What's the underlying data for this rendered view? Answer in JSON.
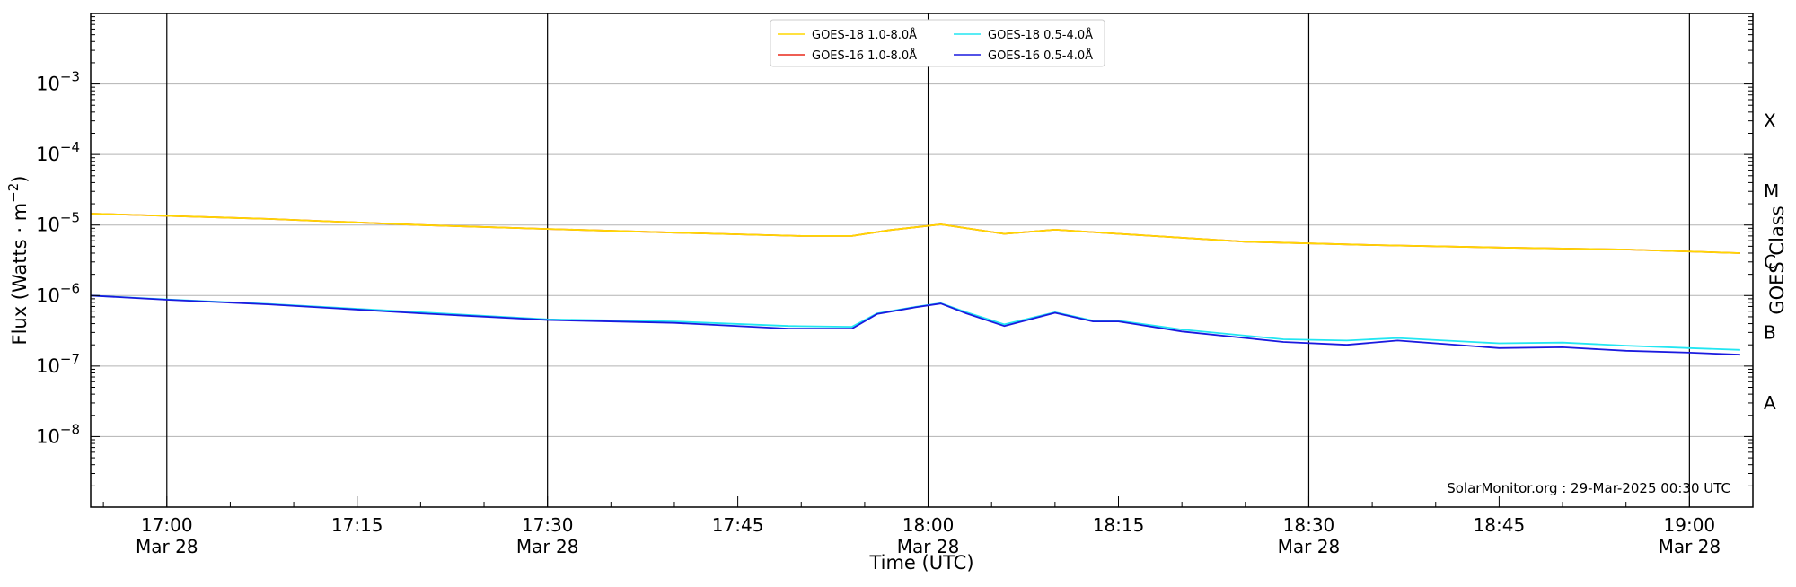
{
  "chart_data": {
    "type": "line",
    "xlabel": "Time (UTC)",
    "ylabel": "Flux (Watts · m⁻²)",
    "right_label": "GOES Class",
    "credit": "SolarMonitor.org : 29-Mar-2025 00:30 UTC",
    "x_range": [
      "2025-03-28 16:54",
      "2025-03-28 19:05"
    ],
    "y_scale": "log",
    "ylim": [
      1e-09,
      0.01
    ],
    "grid": "horizontal",
    "legend_position": "top-center",
    "x_ticks": [
      {
        "time": "2025-03-28 17:00",
        "label": "17:00",
        "date": "Mar 28",
        "major": true
      },
      {
        "time": "2025-03-28 17:15",
        "label": "17:15",
        "date": "",
        "major": false
      },
      {
        "time": "2025-03-28 17:30",
        "label": "17:30",
        "date": "Mar 28",
        "major": true
      },
      {
        "time": "2025-03-28 17:45",
        "label": "17:45",
        "date": "",
        "major": false
      },
      {
        "time": "2025-03-28 18:00",
        "label": "18:00",
        "date": "Mar 28",
        "major": true
      },
      {
        "time": "2025-03-28 18:15",
        "label": "18:15",
        "date": "",
        "major": false
      },
      {
        "time": "2025-03-28 18:30",
        "label": "18:30",
        "date": "Mar 28",
        "major": true
      },
      {
        "time": "2025-03-28 18:45",
        "label": "18:45",
        "date": "",
        "major": false
      },
      {
        "time": "2025-03-28 19:00",
        "label": "19:00",
        "date": "Mar 28",
        "major": true
      }
    ],
    "y_ticks": [
      {
        "value": 1e-08,
        "base": "10",
        "exp": "−8"
      },
      {
        "value": 1e-07,
        "base": "10",
        "exp": "−7"
      },
      {
        "value": 1e-06,
        "base": "10",
        "exp": "−6"
      },
      {
        "value": 1e-05,
        "base": "10",
        "exp": "−5"
      },
      {
        "value": 0.0001,
        "base": "10",
        "exp": "−4"
      },
      {
        "value": 0.001,
        "base": "10",
        "exp": "−3"
      }
    ],
    "goes_classes": [
      {
        "label": "A",
        "value": 3e-08
      },
      {
        "label": "B",
        "value": 3e-07
      },
      {
        "label": "C",
        "value": 3e-06
      },
      {
        "label": "M",
        "value": 3e-05
      },
      {
        "label": "X",
        "value": 0.0003
      }
    ],
    "series": [
      {
        "name": "GOES-18 1.0-8.0Å",
        "color": "#ffd700",
        "x": [
          "2025-03-28 16:54",
          "2025-03-28 17:00",
          "2025-03-28 17:08",
          "2025-03-28 17:20",
          "2025-03-28 17:30",
          "2025-03-28 17:40",
          "2025-03-28 17:50",
          "2025-03-28 17:54",
          "2025-03-28 17:57",
          "2025-03-28 18:01",
          "2025-03-28 18:06",
          "2025-03-28 18:10",
          "2025-03-28 18:15",
          "2025-03-28 18:25",
          "2025-03-28 18:35",
          "2025-03-28 18:45",
          "2025-03-28 18:55",
          "2025-03-28 19:04"
        ],
        "y": [
          1.45e-05,
          1.35e-05,
          1.22e-05,
          1e-05,
          8.8e-06,
          7.8e-06,
          7e-06,
          7e-06,
          8.5e-06,
          1.02e-05,
          7.5e-06,
          8.6e-06,
          7.5e-06,
          5.8e-06,
          5.2e-06,
          4.8e-06,
          4.5e-06,
          4e-06
        ]
      },
      {
        "name": "GOES-16 1.0-8.0Å",
        "color": "#e8291a",
        "x": [
          "2025-03-28 16:54",
          "2025-03-28 17:00",
          "2025-03-28 17:08",
          "2025-03-28 17:20",
          "2025-03-28 17:30",
          "2025-03-28 17:40",
          "2025-03-28 17:50",
          "2025-03-28 17:54",
          "2025-03-28 17:57",
          "2025-03-28 18:01",
          "2025-03-28 18:06",
          "2025-03-28 18:10",
          "2025-03-28 18:15",
          "2025-03-28 18:25",
          "2025-03-28 18:35",
          "2025-03-28 18:45",
          "2025-03-28 18:55",
          "2025-03-28 19:04"
        ],
        "y": [
          1.45e-05,
          1.35e-05,
          1.22e-05,
          1e-05,
          8.8e-06,
          7.8e-06,
          7e-06,
          7e-06,
          8.5e-06,
          1.02e-05,
          7.5e-06,
          8.6e-06,
          7.5e-06,
          5.8e-06,
          5.2e-06,
          4.8e-06,
          4.5e-06,
          4e-06
        ]
      },
      {
        "name": "GOES-18 0.5-4.0Å",
        "color": "#22e6f2",
        "x": [
          "2025-03-28 16:54",
          "2025-03-28 17:00",
          "2025-03-28 17:08",
          "2025-03-28 17:20",
          "2025-03-28 17:30",
          "2025-03-28 17:40",
          "2025-03-28 17:49",
          "2025-03-28 17:54",
          "2025-03-28 17:56",
          "2025-03-28 17:59",
          "2025-03-28 18:01",
          "2025-03-28 18:03",
          "2025-03-28 18:06",
          "2025-03-28 18:10",
          "2025-03-28 18:13",
          "2025-03-28 18:15",
          "2025-03-28 18:20",
          "2025-03-28 18:28",
          "2025-03-28 18:33",
          "2025-03-28 18:37",
          "2025-03-28 18:45",
          "2025-03-28 18:50",
          "2025-03-28 18:55",
          "2025-03-28 19:00",
          "2025-03-28 19:04"
        ],
        "y": [
          1e-06,
          8.8e-07,
          7.6e-07,
          5.8e-07,
          4.6e-07,
          4.3e-07,
          3.7e-07,
          3.6e-07,
          5.6e-07,
          6.9e-07,
          7.8e-07,
          5.8e-07,
          3.9e-07,
          5.8e-07,
          4.4e-07,
          4.4e-07,
          3.3e-07,
          2.4e-07,
          2.3e-07,
          2.5e-07,
          2.1e-07,
          2.15e-07,
          1.95e-07,
          1.8e-07,
          1.7e-07
        ]
      },
      {
        "name": "GOES-16 0.5-4.0Å",
        "color": "#1a1adf",
        "x": [
          "2025-03-28 16:54",
          "2025-03-28 17:00",
          "2025-03-28 17:08",
          "2025-03-28 17:20",
          "2025-03-28 17:30",
          "2025-03-28 17:40",
          "2025-03-28 17:49",
          "2025-03-28 17:54",
          "2025-03-28 17:56",
          "2025-03-28 17:59",
          "2025-03-28 18:01",
          "2025-03-28 18:03",
          "2025-03-28 18:06",
          "2025-03-28 18:10",
          "2025-03-28 18:13",
          "2025-03-28 18:15",
          "2025-03-28 18:20",
          "2025-03-28 18:28",
          "2025-03-28 18:33",
          "2025-03-28 18:37",
          "2025-03-28 18:45",
          "2025-03-28 18:50",
          "2025-03-28 18:55",
          "2025-03-28 19:00",
          "2025-03-28 19:04"
        ],
        "y": [
          1e-06,
          8.7e-07,
          7.5e-07,
          5.6e-07,
          4.5e-07,
          4.1e-07,
          3.4e-07,
          3.4e-07,
          5.5e-07,
          6.8e-07,
          7.7e-07,
          5.6e-07,
          3.7e-07,
          5.7e-07,
          4.3e-07,
          4.3e-07,
          3.1e-07,
          2.2e-07,
          2e-07,
          2.3e-07,
          1.8e-07,
          1.85e-07,
          1.65e-07,
          1.55e-07,
          1.45e-07
        ]
      }
    ]
  }
}
